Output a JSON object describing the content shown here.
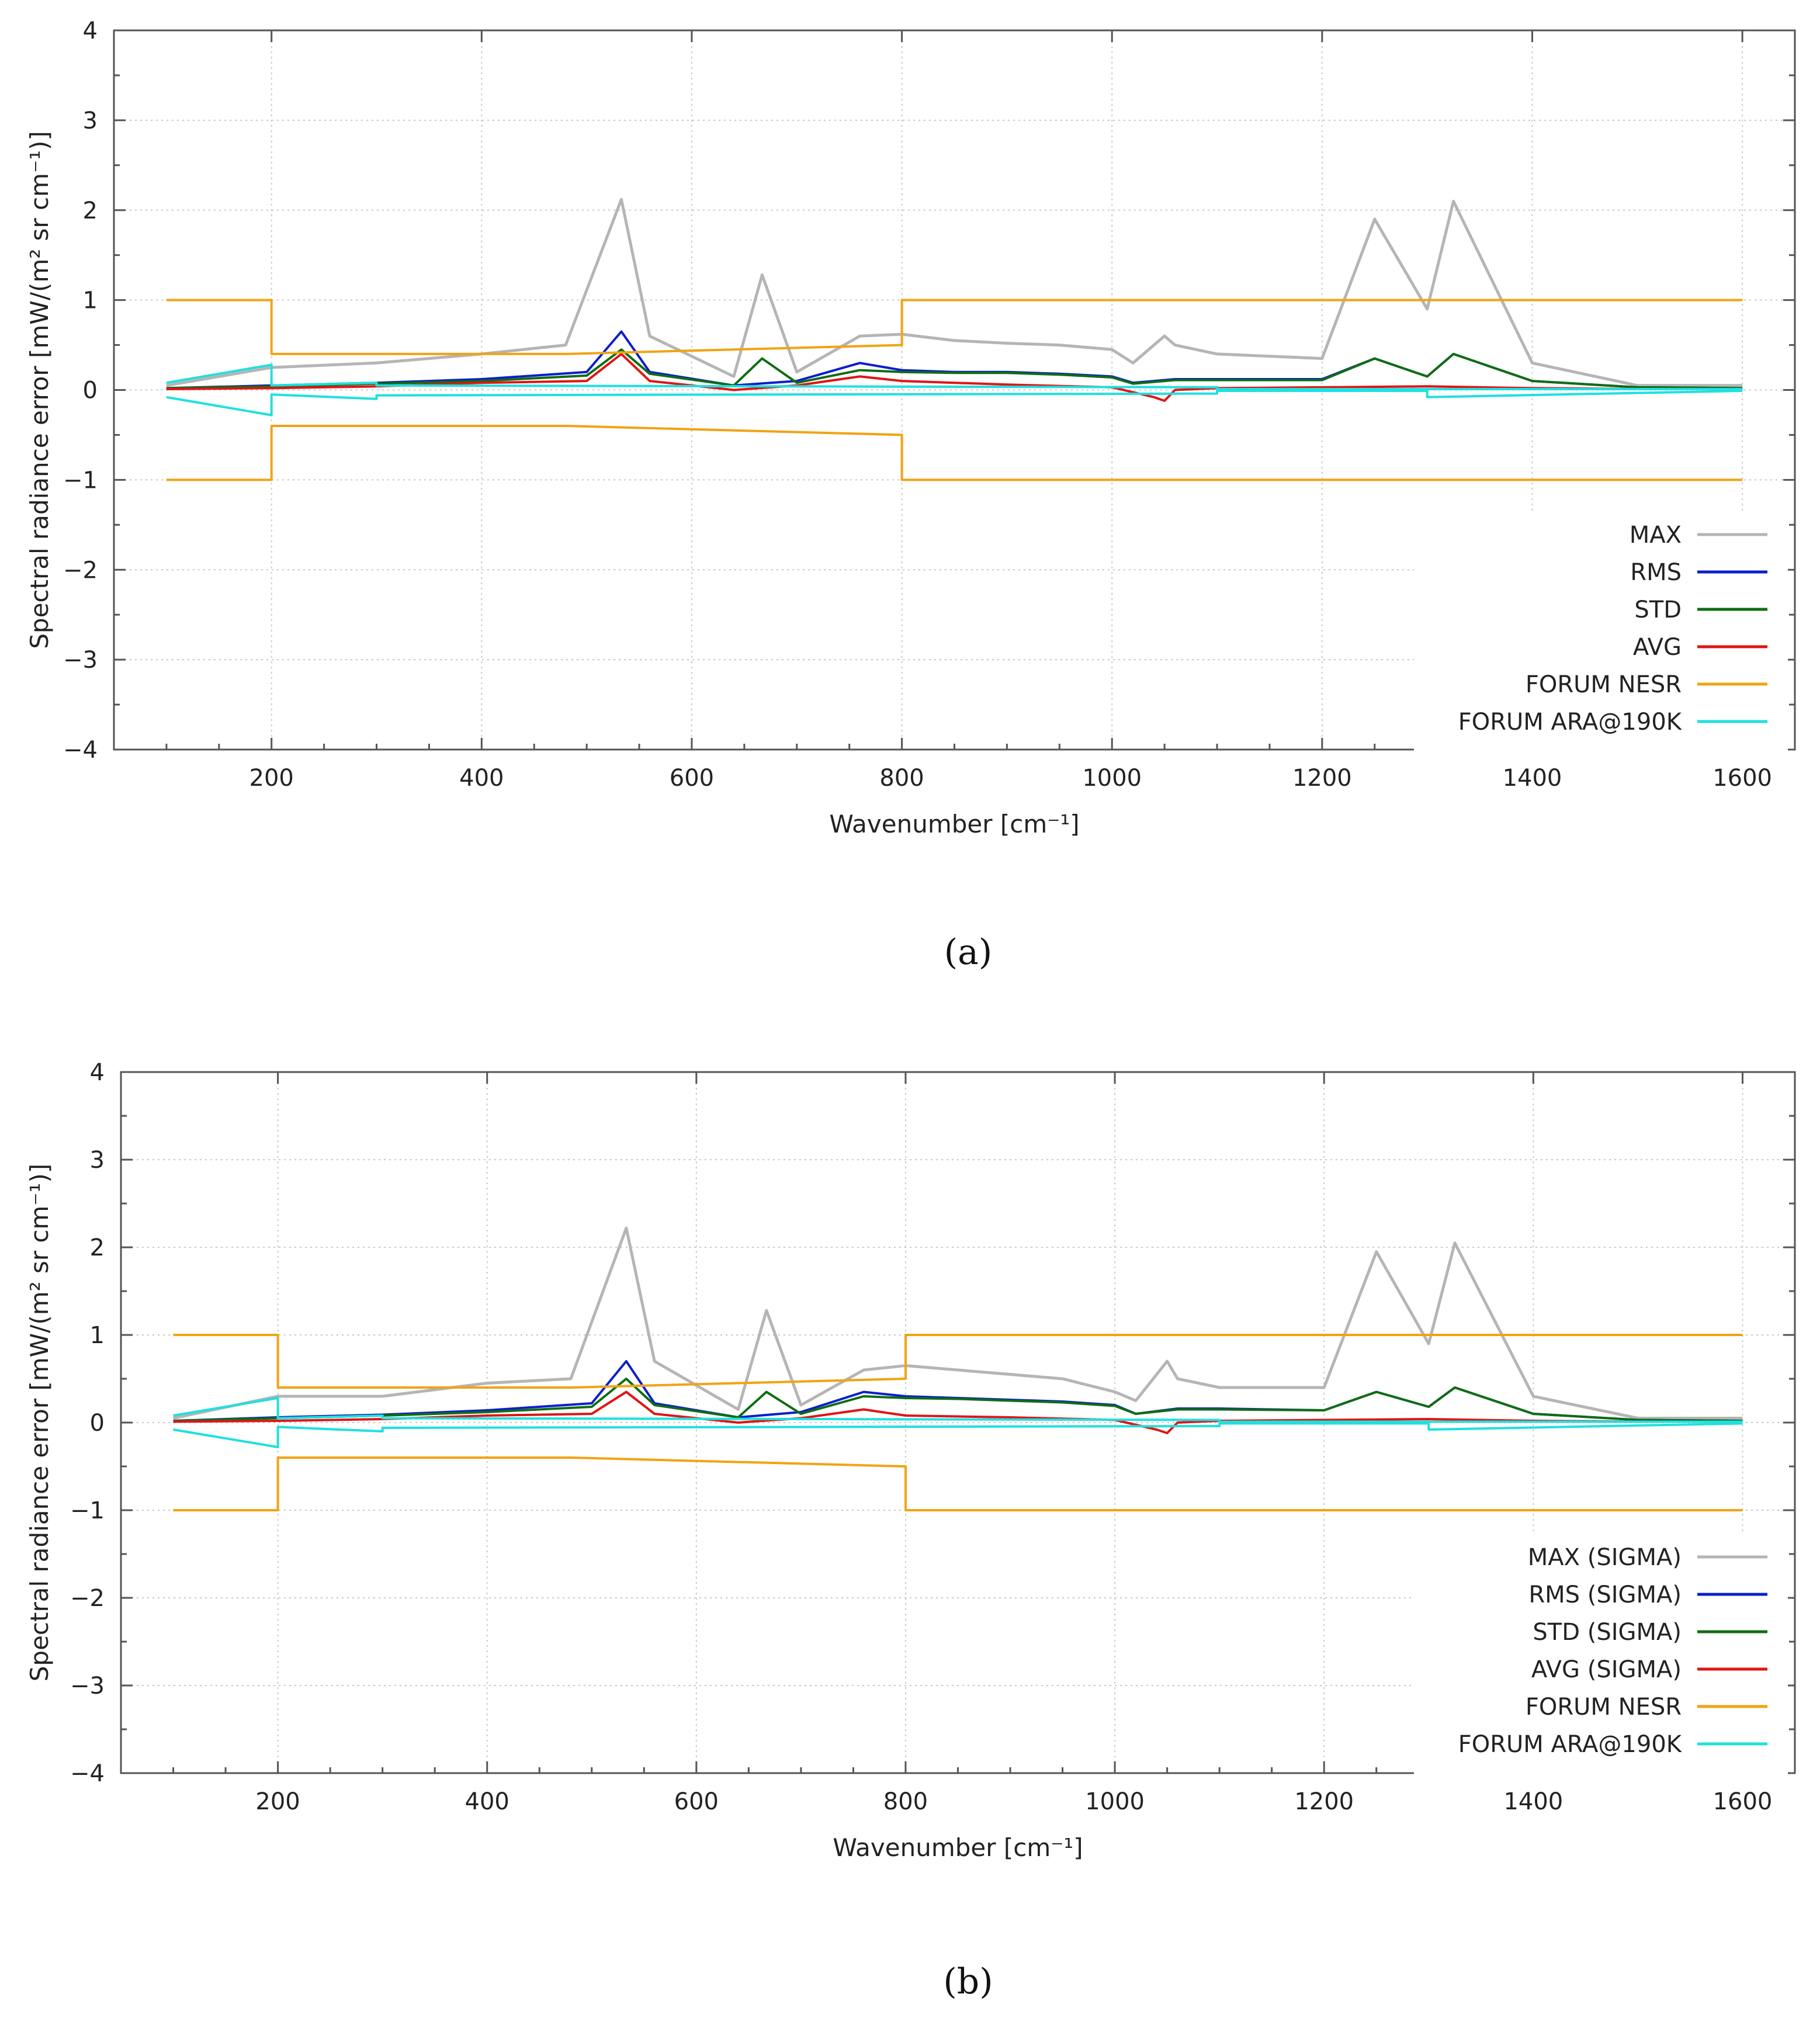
{
  "colors": {
    "max": "#b5b5b5",
    "rms": "#0b1fcc",
    "std": "#0f6d12",
    "avg": "#e01515",
    "nesr": "#f0a413",
    "ara": "#1fe0df",
    "grid": "#c8c8c8",
    "axis": "#555555"
  },
  "chart_data": [
    {
      "type": "line",
      "panel_label": "(a)",
      "xlabel": "Wavenumber [cm⁻¹]",
      "ylabel": "Spectral radiance error [mW/(m² sr cm⁻¹)]",
      "xlim": [
        50,
        1650
      ],
      "ylim": [
        -4,
        4
      ],
      "xticks": [
        200,
        400,
        600,
        800,
        1000,
        1200,
        1400,
        1600
      ],
      "yticks": [
        -4,
        -3,
        -2,
        -1,
        0,
        1,
        2,
        3,
        4
      ],
      "grid": true,
      "legend_position": "bottom-right",
      "series": [
        {
          "name": "MAX",
          "color_key": "max",
          "x": [
            100,
            200,
            300,
            400,
            480,
            533,
            560,
            640,
            667,
            700,
            760,
            800,
            850,
            900,
            950,
            1000,
            1020,
            1050,
            1060,
            1100,
            1200,
            1250,
            1300,
            1325,
            1400,
            1500,
            1600
          ],
          "y": [
            0.05,
            0.25,
            0.3,
            0.4,
            0.5,
            2.12,
            0.6,
            0.15,
            1.28,
            0.2,
            0.6,
            0.62,
            0.55,
            0.52,
            0.5,
            0.45,
            0.3,
            0.6,
            0.5,
            0.4,
            0.35,
            1.9,
            0.9,
            2.1,
            0.3,
            0.05,
            0.05
          ]
        },
        {
          "name": "RMS",
          "color_key": "rms",
          "x": [
            100,
            200,
            300,
            400,
            500,
            533,
            560,
            640,
            700,
            760,
            800,
            850,
            900,
            950,
            1000,
            1020,
            1060,
            1100,
            1200,
            1250,
            1300,
            1325,
            1400,
            1500,
            1600
          ],
          "y": [
            0.02,
            0.05,
            0.08,
            0.12,
            0.2,
            0.65,
            0.2,
            0.05,
            0.1,
            0.3,
            0.22,
            0.2,
            0.2,
            0.18,
            0.15,
            0.08,
            0.12,
            0.12,
            0.12,
            0.35,
            0.15,
            0.4,
            0.1,
            0.03,
            0.02
          ]
        },
        {
          "name": "STD",
          "color_key": "std",
          "x": [
            100,
            200,
            300,
            400,
            500,
            533,
            560,
            640,
            667,
            700,
            760,
            800,
            850,
            900,
            950,
            1000,
            1020,
            1060,
            1100,
            1200,
            1250,
            1300,
            1325,
            1400,
            1500,
            1600
          ],
          "y": [
            0.02,
            0.04,
            0.07,
            0.1,
            0.16,
            0.45,
            0.18,
            0.05,
            0.35,
            0.08,
            0.22,
            0.2,
            0.19,
            0.19,
            0.17,
            0.14,
            0.07,
            0.11,
            0.11,
            0.11,
            0.35,
            0.15,
            0.4,
            0.1,
            0.03,
            0.02
          ]
        },
        {
          "name": "AVG",
          "color_key": "avg",
          "x": [
            100,
            200,
            300,
            400,
            500,
            533,
            560,
            640,
            700,
            760,
            800,
            850,
            900,
            1000,
            1040,
            1050,
            1060,
            1100,
            1200,
            1300,
            1400,
            1500,
            1600
          ],
          "y": [
            0.01,
            0.02,
            0.04,
            0.08,
            0.1,
            0.4,
            0.1,
            0.0,
            0.05,
            0.15,
            0.1,
            0.08,
            0.06,
            0.03,
            -0.08,
            -0.12,
            0.0,
            0.02,
            0.03,
            0.04,
            0.02,
            0.01,
            0.01
          ]
        },
        {
          "name": "FORUM NESR",
          "color_key": "nesr",
          "x": [
            100,
            200,
            200,
            480,
            800,
            800,
            1600
          ],
          "y": [
            1.0,
            1.0,
            0.4,
            0.4,
            0.5,
            1.0,
            1.0
          ]
        },
        {
          "name": "FORUM NESR",
          "color_key": "nesr",
          "legend": false,
          "x": [
            100,
            200,
            200,
            480,
            800,
            800,
            1600
          ],
          "y": [
            -1.0,
            -1.0,
            -0.4,
            -0.4,
            -0.5,
            -1.0,
            -1.0
          ]
        },
        {
          "name": "FORUM ARA@190K",
          "color_key": "ara",
          "x": [
            100,
            200,
            200,
            300,
            300,
            1100,
            1100,
            1300,
            1300,
            1600
          ],
          "y": [
            0.08,
            0.28,
            0.05,
            0.08,
            0.05,
            0.03,
            0.01,
            0.01,
            0.01,
            0.01
          ]
        },
        {
          "name": "FORUM ARA@190K",
          "color_key": "ara",
          "legend": false,
          "x": [
            100,
            200,
            200,
            300,
            300,
            1100,
            1100,
            1300,
            1300,
            1600
          ],
          "y": [
            -0.08,
            -0.28,
            -0.05,
            -0.1,
            -0.06,
            -0.04,
            -0.01,
            -0.01,
            -0.08,
            -0.01
          ]
        }
      ]
    },
    {
      "type": "line",
      "panel_label": "(b)",
      "xlabel": "Wavenumber [cm⁻¹]",
      "ylabel": "Spectral radiance error [mW/(m² sr cm⁻¹)]",
      "xlim": [
        50,
        1650
      ],
      "ylim": [
        -4,
        4
      ],
      "xticks": [
        200,
        400,
        600,
        800,
        1000,
        1200,
        1400,
        1600
      ],
      "yticks": [
        -4,
        -3,
        -2,
        -1,
        0,
        1,
        2,
        3,
        4
      ],
      "grid": true,
      "legend_position": "bottom-right",
      "series": [
        {
          "name": "MAX (SIGMA)",
          "color_key": "max",
          "x": [
            100,
            200,
            300,
            400,
            480,
            533,
            560,
            640,
            667,
            700,
            760,
            800,
            850,
            900,
            950,
            1000,
            1020,
            1050,
            1060,
            1100,
            1200,
            1250,
            1300,
            1325,
            1400,
            1500,
            1600
          ],
          "y": [
            0.05,
            0.3,
            0.3,
            0.45,
            0.5,
            2.22,
            0.7,
            0.15,
            1.28,
            0.2,
            0.6,
            0.65,
            0.6,
            0.55,
            0.5,
            0.35,
            0.25,
            0.7,
            0.5,
            0.4,
            0.4,
            1.95,
            0.9,
            2.05,
            0.3,
            0.05,
            0.05
          ]
        },
        {
          "name": "RMS (SIGMA)",
          "color_key": "rms",
          "x": [
            100,
            200,
            300,
            400,
            500,
            533,
            560,
            640,
            700,
            760,
            800,
            850,
            900,
            950,
            1000,
            1020,
            1060,
            1100,
            1200,
            1250,
            1300,
            1325,
            1400,
            1500,
            1600
          ],
          "y": [
            0.02,
            0.06,
            0.09,
            0.14,
            0.22,
            0.7,
            0.22,
            0.06,
            0.12,
            0.35,
            0.3,
            0.28,
            0.26,
            0.24,
            0.2,
            0.1,
            0.16,
            0.16,
            0.14,
            0.35,
            0.18,
            0.4,
            0.1,
            0.03,
            0.02
          ]
        },
        {
          "name": "STD (SIGMA)",
          "color_key": "std",
          "x": [
            100,
            200,
            300,
            400,
            500,
            533,
            560,
            640,
            667,
            700,
            760,
            800,
            850,
            900,
            950,
            1000,
            1020,
            1060,
            1100,
            1200,
            1250,
            1300,
            1325,
            1400,
            1500,
            1600
          ],
          "y": [
            0.02,
            0.05,
            0.08,
            0.12,
            0.18,
            0.5,
            0.2,
            0.06,
            0.35,
            0.1,
            0.3,
            0.28,
            0.27,
            0.25,
            0.23,
            0.19,
            0.1,
            0.15,
            0.15,
            0.14,
            0.35,
            0.18,
            0.4,
            0.1,
            0.03,
            0.02
          ]
        },
        {
          "name": "AVG (SIGMA)",
          "color_key": "avg",
          "x": [
            100,
            200,
            300,
            400,
            500,
            533,
            560,
            640,
            700,
            760,
            800,
            850,
            900,
            1000,
            1040,
            1050,
            1060,
            1100,
            1200,
            1300,
            1400,
            1500,
            1600
          ],
          "y": [
            0.01,
            0.02,
            0.04,
            0.08,
            0.1,
            0.35,
            0.1,
            0.0,
            0.05,
            0.15,
            0.08,
            0.07,
            0.06,
            0.03,
            -0.08,
            -0.12,
            0.0,
            0.02,
            0.03,
            0.04,
            0.02,
            0.01,
            0.01
          ]
        },
        {
          "name": "FORUM NESR",
          "color_key": "nesr",
          "x": [
            100,
            200,
            200,
            480,
            800,
            800,
            1600
          ],
          "y": [
            1.0,
            1.0,
            0.4,
            0.4,
            0.5,
            1.0,
            1.0
          ]
        },
        {
          "name": "FORUM NESR",
          "color_key": "nesr",
          "legend": false,
          "x": [
            100,
            200,
            200,
            480,
            800,
            800,
            1600
          ],
          "y": [
            -1.0,
            -1.0,
            -0.4,
            -0.4,
            -0.5,
            -1.0,
            -1.0
          ]
        },
        {
          "name": "FORUM ARA@190K",
          "color_key": "ara",
          "x": [
            100,
            200,
            200,
            300,
            300,
            1100,
            1100,
            1300,
            1300,
            1600
          ],
          "y": [
            0.08,
            0.28,
            0.05,
            0.08,
            0.05,
            0.03,
            0.01,
            0.01,
            0.01,
            0.01
          ]
        },
        {
          "name": "FORUM ARA@190K",
          "color_key": "ara",
          "legend": false,
          "x": [
            100,
            200,
            200,
            300,
            300,
            1100,
            1100,
            1300,
            1300,
            1600
          ],
          "y": [
            -0.08,
            -0.28,
            -0.05,
            -0.1,
            -0.06,
            -0.04,
            -0.01,
            -0.01,
            -0.08,
            -0.01
          ]
        }
      ]
    }
  ]
}
